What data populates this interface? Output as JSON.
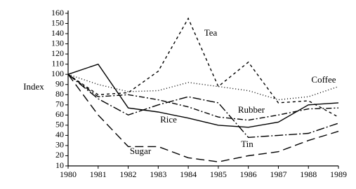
{
  "chart_data": {
    "type": "line",
    "y_label": "Index",
    "x": [
      1980,
      1981,
      1982,
      1983,
      1984,
      1985,
      1986,
      1987,
      1988,
      1989
    ],
    "xlim": [
      1980,
      1989
    ],
    "xticks": [
      1980,
      1981,
      1982,
      1983,
      1984,
      1985,
      1986,
      1987,
      1988,
      1989
    ],
    "ylim": [
      10,
      160
    ],
    "yticks": [
      10,
      20,
      30,
      40,
      50,
      60,
      70,
      80,
      90,
      100,
      110,
      120,
      130,
      140,
      150,
      160
    ],
    "series": [
      {
        "name": "Tea",
        "color": "#000000",
        "dash": "4,4",
        "values": [
          100,
          80,
          82,
          103,
          155,
          88,
          112,
          72,
          74,
          58
        ]
      },
      {
        "name": "Coffee",
        "color": "#000000",
        "dash": "1,3",
        "values": [
          100,
          90,
          83,
          84,
          92,
          88,
          84,
          75,
          78,
          88
        ]
      },
      {
        "name": "Rubber",
        "color": "#000000",
        "dash": "8,3,2,3",
        "values": [
          100,
          78,
          80,
          75,
          68,
          58,
          55,
          60,
          66,
          67
        ]
      },
      {
        "name": "Rice",
        "color": "#000000",
        "dash": "none",
        "values": [
          100,
          110,
          67,
          63,
          57,
          50,
          48,
          53,
          70,
          72
        ]
      },
      {
        "name": "Tin",
        "color": "#000000",
        "dash": "12,3,2,3",
        "values": [
          100,
          76,
          60,
          70,
          78,
          72,
          38,
          40,
          42,
          52
        ]
      },
      {
        "name": "Sugar",
        "color": "#000000",
        "dash": "12,6",
        "values": [
          100,
          60,
          29,
          29,
          18,
          14,
          20,
          24,
          35,
          44
        ]
      }
    ]
  }
}
